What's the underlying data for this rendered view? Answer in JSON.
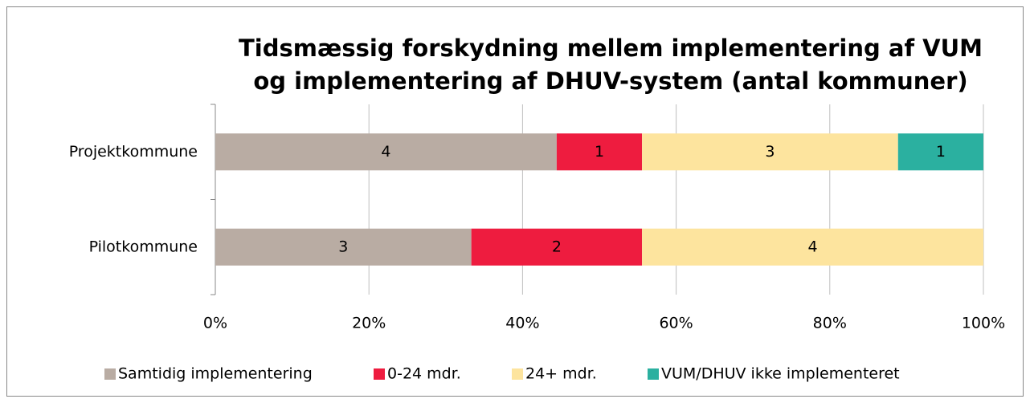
{
  "chart_data": {
    "type": "bar",
    "orientation": "horizontal",
    "stacked": "percent",
    "title": [
      "Tidsmæssig forskydning mellem implementering af VUM",
      "og implementering af DHUV-system (antal kommuner)"
    ],
    "categories": [
      "Projektkommune",
      "Pilotkommune"
    ],
    "series": [
      {
        "name": "Samtidig implementering",
        "color": "#b9aca3",
        "values": [
          4,
          3
        ]
      },
      {
        "name": "0-24 mdr.",
        "color": "#ee1c3f",
        "values": [
          1,
          2
        ]
      },
      {
        "name": "24+ mdr.",
        "color": "#fde49e",
        "values": [
          3,
          4
        ]
      },
      {
        "name": "VUM/DHUV ikke implementeret",
        "color": "#2bb0a0",
        "values": [
          1,
          0
        ]
      }
    ],
    "xlim": [
      0,
      100
    ],
    "xticks": [
      {
        "value": 0,
        "label": "0%"
      },
      {
        "value": 20,
        "label": "20%"
      },
      {
        "value": 40,
        "label": "40%"
      },
      {
        "value": 60,
        "label": "60%"
      },
      {
        "value": 80,
        "label": "80%"
      },
      {
        "value": 100,
        "label": "100%"
      }
    ],
    "grid": true,
    "legend": "bottom"
  }
}
